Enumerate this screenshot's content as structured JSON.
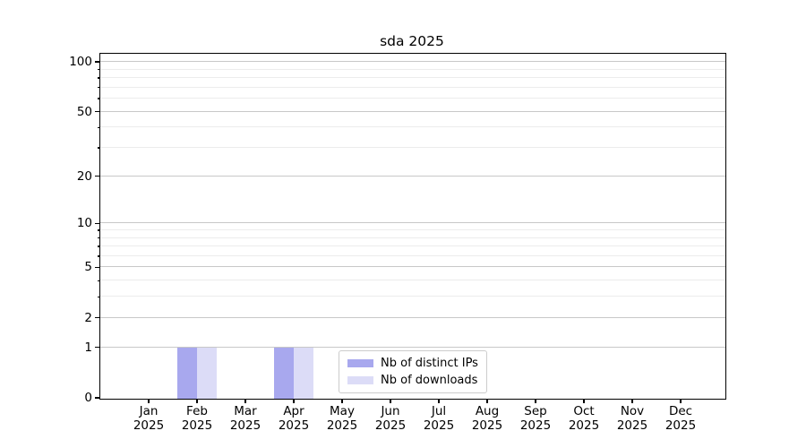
{
  "figure": {
    "title": "sda 2025"
  },
  "chart_data": {
    "type": "bar",
    "title": "sda 2025",
    "categories": [
      "Jan",
      "Feb",
      "Mar",
      "Apr",
      "May",
      "Jun",
      "Jul",
      "Aug",
      "Sep",
      "Oct",
      "Nov",
      "Dec"
    ],
    "x_year_label": "2025",
    "series": [
      {
        "name": "Nb of distinct IPs",
        "color": "#a8a8ee",
        "values": [
          0,
          1,
          0,
          1,
          0,
          0,
          0,
          0,
          0,
          0,
          0,
          0
        ]
      },
      {
        "name": "Nb of downloads",
        "color": "#dcdcf7",
        "values": [
          0,
          1,
          0,
          1,
          0,
          0,
          0,
          0,
          0,
          0,
          0,
          0
        ]
      }
    ],
    "yscale": "log1p",
    "ylim": [
      0,
      112
    ],
    "y_major_ticks": [
      0,
      1,
      2,
      5,
      10,
      20,
      50,
      100
    ],
    "y_minor_ticks": [
      3,
      4,
      6,
      7,
      8,
      9,
      30,
      40,
      60,
      70,
      80,
      90
    ],
    "grid": "horizontal-only",
    "legend_position": "lower center"
  },
  "colors": {
    "background": "#ffffff",
    "text": "#000000",
    "spine": "#000000",
    "major_grid": "#c8c8c8",
    "minor_grid": "#ececec",
    "legend_border": "#cccccc"
  }
}
